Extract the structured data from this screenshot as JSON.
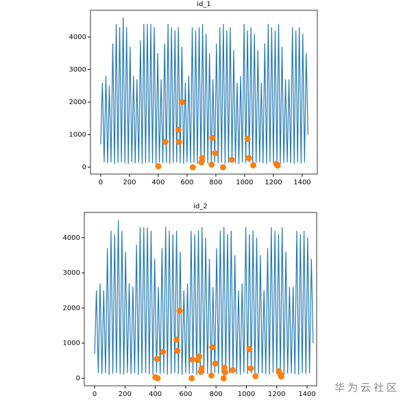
{
  "chart_data": [
    {
      "type": "line",
      "title": "id_1",
      "xlim": [
        -71,
        1505
      ],
      "ylim": [
        -210,
        4820
      ],
      "xticks": [
        0,
        200,
        400,
        600,
        800,
        1000,
        1200,
        1400
      ],
      "yticks": [
        0,
        1000,
        2000,
        3000,
        4000
      ],
      "series": [
        {
          "color": "#1f77b4",
          "x": [
            0,
            12,
            24,
            36,
            48,
            60,
            72,
            84,
            96,
            108,
            120,
            132,
            144,
            156,
            168,
            180,
            192,
            204,
            216,
            228,
            240,
            252,
            264,
            276,
            288,
            300,
            312,
            324,
            336,
            348,
            360,
            372,
            384,
            396,
            408,
            420,
            432,
            444,
            456,
            468,
            480,
            492,
            504,
            516,
            528,
            540,
            552,
            564,
            576,
            588,
            600,
            612,
            624,
            636,
            648,
            660,
            672,
            684,
            696,
            708,
            720,
            732,
            744,
            756,
            768,
            780,
            792,
            804,
            816,
            828,
            840,
            852,
            864,
            876,
            888,
            900,
            912,
            924,
            936,
            948,
            960,
            972,
            984,
            996,
            1008,
            1020,
            1032,
            1044,
            1056,
            1068,
            1080,
            1092,
            1104,
            1116,
            1128,
            1140,
            1152,
            1164,
            1176,
            1188,
            1200,
            1212,
            1224,
            1236,
            1248,
            1260,
            1272,
            1284,
            1296,
            1308,
            1320,
            1332,
            1344,
            1356,
            1368,
            1380,
            1392,
            1404,
            1416,
            1428,
            1440
          ],
          "values": [
            700,
            2600,
            150,
            2800,
            120,
            2500,
            150,
            3800,
            100,
            4400,
            130,
            4300,
            150,
            4600,
            120,
            4300,
            100,
            3700,
            150,
            2800,
            120,
            2700,
            140,
            3900,
            100,
            4400,
            130,
            4400,
            150,
            4400,
            120,
            4300,
            100,
            3500,
            150,
            2700,
            120,
            3800,
            140,
            4400,
            100,
            4300,
            130,
            4200,
            150,
            4300,
            120,
            3700,
            100,
            2600,
            150,
            2800,
            120,
            4300,
            140,
            4200,
            100,
            4300,
            130,
            4400,
            150,
            4100,
            120,
            3500,
            100,
            2700,
            150,
            3800,
            120,
            4300,
            140,
            4400,
            100,
            4200,
            130,
            4300,
            150,
            3600,
            120,
            2600,
            100,
            2800,
            150,
            4400,
            120,
            4200,
            140,
            4300,
            100,
            4100,
            130,
            3600,
            150,
            2600,
            120,
            3800,
            100,
            4400,
            150,
            4300,
            120,
            4200,
            140,
            4400,
            100,
            3700,
            130,
            2700,
            150,
            2700,
            120,
            4300,
            100,
            4200,
            150,
            4300,
            120,
            4100,
            140,
            3500,
            1000
          ]
        },
        {
          "type": "scatter",
          "color": "#ff7f0e",
          "x": [
            400,
            450,
            540,
            545,
            565,
            640,
            700,
            705,
            770,
            775,
            795,
            850,
            910,
            1020,
            1030,
            1060,
            1220,
            1230
          ],
          "values": [
            30,
            780,
            1150,
            780,
            2000,
            0,
            150,
            280,
            80,
            900,
            430,
            0,
            230,
            870,
            280,
            60,
            100,
            50
          ]
        }
      ]
    },
    {
      "type": "line",
      "title": "id_2",
      "xlim": [
        -68,
        1463
      ],
      "ylim": [
        -215,
        4720
      ],
      "xticks": [
        0,
        200,
        400,
        600,
        800,
        1000,
        1200,
        1400
      ],
      "yticks": [
        0,
        1000,
        2000,
        3000,
        4000
      ],
      "series": [
        {
          "color": "#1f77b4",
          "x": [
            0,
            12,
            24,
            36,
            48,
            60,
            72,
            84,
            96,
            108,
            120,
            132,
            144,
            156,
            168,
            180,
            192,
            204,
            216,
            228,
            240,
            252,
            264,
            276,
            288,
            300,
            312,
            324,
            336,
            348,
            360,
            372,
            384,
            396,
            408,
            420,
            432,
            444,
            456,
            468,
            480,
            492,
            504,
            516,
            528,
            540,
            552,
            564,
            576,
            588,
            600,
            612,
            624,
            636,
            648,
            660,
            672,
            684,
            696,
            708,
            720,
            732,
            744,
            756,
            768,
            780,
            792,
            804,
            816,
            828,
            840,
            852,
            864,
            876,
            888,
            900,
            912,
            924,
            936,
            948,
            960,
            972,
            984,
            996,
            1008,
            1020,
            1032,
            1044,
            1056,
            1068,
            1080,
            1092,
            1104,
            1116,
            1128,
            1140,
            1152,
            1164,
            1176,
            1188,
            1200,
            1212,
            1224,
            1236,
            1248,
            1260,
            1272,
            1284,
            1296,
            1308,
            1320,
            1332,
            1344,
            1356,
            1368,
            1380,
            1392,
            1404,
            1416,
            1428,
            1440
          ],
          "values": [
            700,
            2500,
            150,
            2700,
            120,
            2500,
            150,
            3700,
            100,
            4200,
            130,
            4100,
            150,
            4500,
            120,
            4200,
            100,
            3600,
            150,
            2700,
            120,
            2600,
            140,
            3800,
            100,
            4300,
            130,
            4300,
            150,
            4300,
            120,
            4200,
            100,
            3400,
            150,
            2600,
            120,
            3700,
            140,
            4300,
            100,
            4200,
            130,
            4100,
            150,
            4200,
            120,
            3600,
            100,
            2500,
            150,
            2700,
            120,
            4200,
            140,
            4100,
            100,
            4200,
            130,
            4300,
            150,
            4000,
            120,
            3400,
            100,
            2600,
            150,
            3700,
            120,
            4200,
            140,
            4300,
            100,
            4100,
            130,
            4200,
            150,
            3500,
            120,
            2500,
            100,
            2700,
            150,
            4300,
            120,
            4100,
            140,
            4200,
            100,
            4000,
            130,
            3500,
            150,
            2500,
            120,
            3700,
            100,
            4300,
            150,
            4200,
            120,
            4100,
            140,
            4300,
            100,
            3600,
            130,
            2600,
            150,
            2600,
            120,
            4200,
            100,
            4100,
            150,
            4200,
            120,
            4000,
            140,
            3400,
            1000
          ]
        },
        {
          "type": "scatter",
          "color": "#ff7f0e",
          "x": [
            400,
            410,
            415,
            450,
            540,
            545,
            560,
            640,
            645,
            680,
            690,
            700,
            705,
            770,
            775,
            795,
            850,
            855,
            860,
            910,
            1020,
            1030,
            1060,
            1215,
            1225,
            1230
          ],
          "values": [
            30,
            550,
            0,
            750,
            1100,
            780,
            1920,
            0,
            530,
            520,
            620,
            180,
            280,
            80,
            880,
            420,
            0,
            300,
            170,
            230,
            830,
            280,
            60,
            200,
            100,
            50
          ]
        }
      ]
    }
  ],
  "watermark": "华为云社区"
}
